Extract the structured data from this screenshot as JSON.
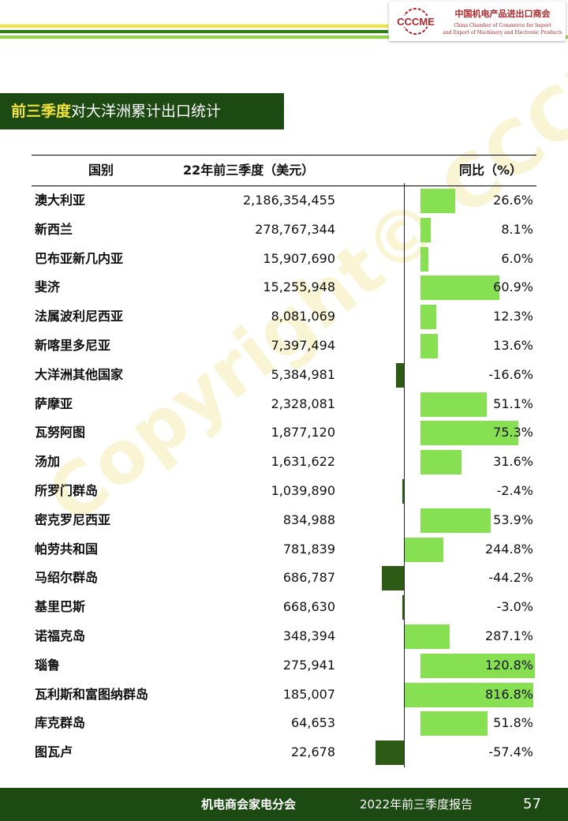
{
  "header": {
    "logo_mark_text": "CCCME",
    "org_cn": "中国机电产品进出口商会",
    "org_en_line1": "China Chamber of Commerce for Import",
    "org_en_line2": "and Export of Machinery and Electronic Products",
    "colors": {
      "green_dark": "#2e7d1a",
      "green_light": "#8ed641",
      "yellow": "#f2e33a",
      "title_bg": "#1c4a12"
    }
  },
  "section_title": {
    "highlight": "前三季度",
    "rest": "对大洋洲累计出口统计"
  },
  "watermark": "Copyright© CCCME",
  "table": {
    "headers": {
      "country": "国别",
      "value": "22年前三季度（美元）",
      "yoy": "同比（%）"
    },
    "bar_colors": {
      "positive": "#86e052",
      "negative": "#2d5a14"
    },
    "rows": [
      {
        "country": "澳大利亚",
        "value": "2,186,354,455",
        "yoy": "26.6%",
        "yoy_num": 26.6
      },
      {
        "country": "新西兰",
        "value": "278,767,344",
        "yoy": "8.1%",
        "yoy_num": 8.1
      },
      {
        "country": "巴布亚新几内亚",
        "value": "15,907,690",
        "yoy": "6.0%",
        "yoy_num": 6.0
      },
      {
        "country": "斐济",
        "value": "15,255,948",
        "yoy": "60.9%",
        "yoy_num": 60.9
      },
      {
        "country": "法属波利尼西亚",
        "value": "8,081,069",
        "yoy": "12.3%",
        "yoy_num": 12.3
      },
      {
        "country": "新喀里多尼亚",
        "value": "7,397,494",
        "yoy": "13.6%",
        "yoy_num": 13.6
      },
      {
        "country": "大洋洲其他国家",
        "value": "5,384,981",
        "yoy": "-16.6%",
        "yoy_num": -16.6
      },
      {
        "country": "萨摩亚",
        "value": "2,328,081",
        "yoy": "51.1%",
        "yoy_num": 51.1
      },
      {
        "country": "瓦努阿图",
        "value": "1,877,120",
        "yoy": "75.3%",
        "yoy_num": 75.3
      },
      {
        "country": "汤加",
        "value": "1,631,622",
        "yoy": "31.6%",
        "yoy_num": 31.6
      },
      {
        "country": "所罗门群岛",
        "value": "1,039,890",
        "yoy": "-2.4%",
        "yoy_num": -2.4
      },
      {
        "country": "密克罗尼西亚",
        "value": "834,988",
        "yoy": "53.9%",
        "yoy_num": 53.9
      },
      {
        "country": "帕劳共和国",
        "value": "781,839",
        "yoy": "244.8%",
        "yoy_num": 244.8
      },
      {
        "country": "马绍尔群岛",
        "value": "686,787",
        "yoy": "-44.2%",
        "yoy_num": -44.2
      },
      {
        "country": "基里巴斯",
        "value": "668,630",
        "yoy": "-3.0%",
        "yoy_num": -3.0
      },
      {
        "country": "诺福克岛",
        "value": "348,394",
        "yoy": "287.1%",
        "yoy_num": 287.1
      },
      {
        "country": "瑙鲁",
        "value": "275,941",
        "yoy": "120.8%",
        "yoy_num": 120.8
      },
      {
        "country": "瓦利斯和富图纳群岛",
        "value": "185,007",
        "yoy": "816.8%",
        "yoy_num": 816.8
      },
      {
        "country": "库克群岛",
        "value": "64,653",
        "yoy": "51.8%",
        "yoy_num": 51.8
      },
      {
        "country": "图瓦卢",
        "value": "22,678",
        "yoy": "-57.4%",
        "yoy_num": -57.4
      }
    ]
  },
  "footer": {
    "org": "机电商会家电分会",
    "report": "2022年前三季度报告",
    "page": "57"
  }
}
